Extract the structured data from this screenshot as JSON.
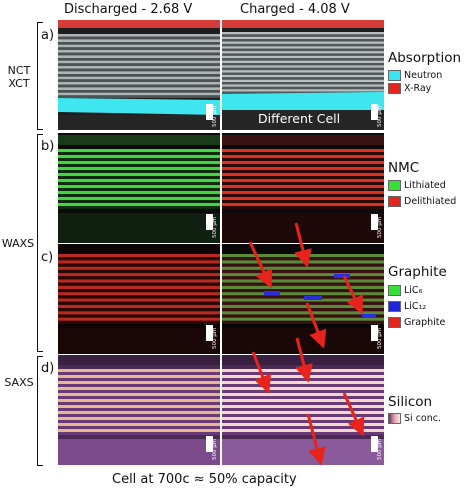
{
  "header": {
    "left_title": "Discharged - 2.68 V",
    "right_title": "Charged - 4.08 V"
  },
  "rows": [
    {
      "letter": "a)",
      "legend_title": "Absorption",
      "items": [
        {
          "label": "Neutron",
          "color": "#33e6f0"
        },
        {
          "label": "X-Ray",
          "color": "#e8231c"
        }
      ]
    },
    {
      "letter": "b)",
      "legend_title": "NMC",
      "items": [
        {
          "label": "Lithiated",
          "color": "#35e035"
        },
        {
          "label": "Delithiated",
          "color": "#e8231c"
        }
      ]
    },
    {
      "letter": "c)",
      "legend_title": "Graphite",
      "items": [
        {
          "label": "LiC₆",
          "color": "#35e035"
        },
        {
          "label": "LiC₁₂",
          "color": "#1d23e0"
        },
        {
          "label": "Graphite",
          "color": "#e8231c"
        }
      ]
    },
    {
      "letter": "d)",
      "legend_title": "Silicon",
      "items": [
        {
          "label": "Si conc.",
          "color": "#d9a0b4"
        }
      ]
    }
  ],
  "groups": {
    "g1": "NCT\nXCT",
    "g2": "WAXS",
    "g3": "SAXS"
  },
  "scale_label": "500 µm",
  "different_cell": "Different Cell",
  "caption": "Cell at 700c ≈ 50% capacity"
}
